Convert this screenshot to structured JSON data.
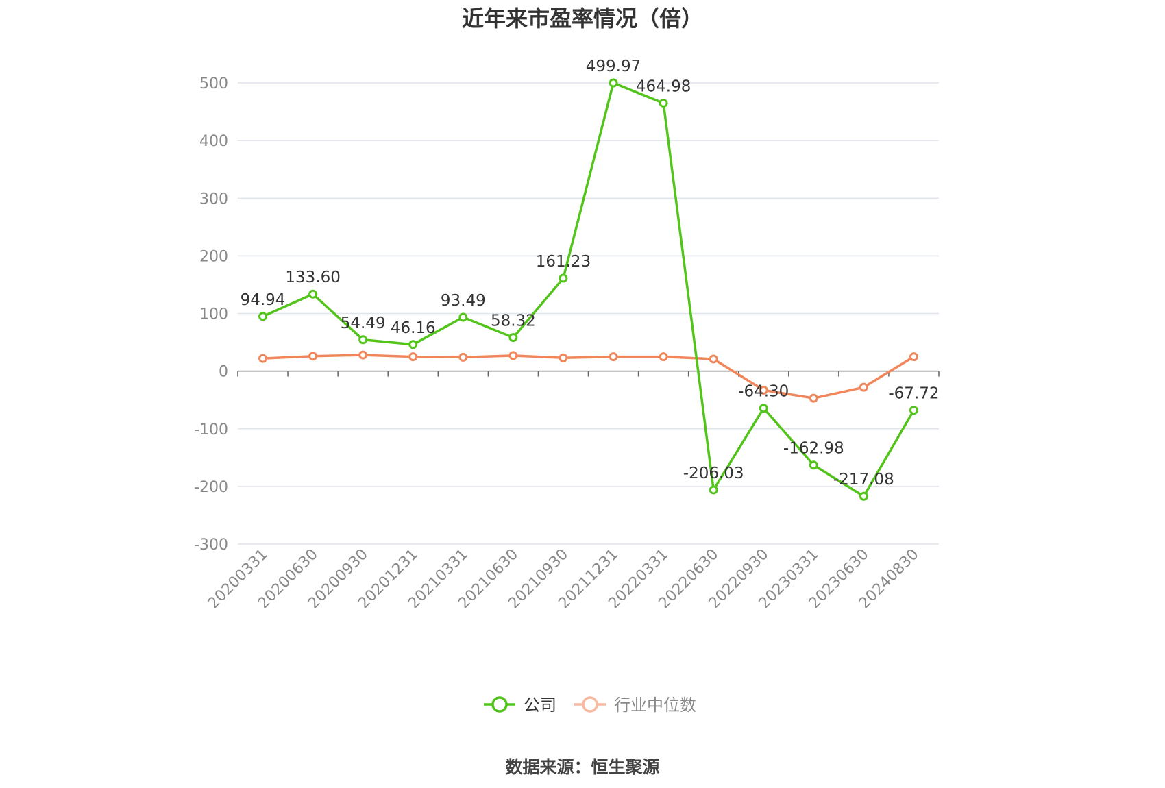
{
  "title": "近年来市盈率情况（倍）",
  "source": "数据来源：恒生聚源",
  "colors": {
    "company": "#52c41a",
    "industry": "#f0865a",
    "industry_legend": "#f7b9a0",
    "grid": "#e0e4ec",
    "axis": "#666666"
  },
  "chart_data": {
    "type": "line",
    "title": "近年来市盈率情况（倍）",
    "xlabel": "",
    "ylabel": "",
    "ylim": [
      -300,
      500
    ],
    "yticks": [
      500,
      400,
      300,
      200,
      100,
      0,
      -100,
      -200,
      -300
    ],
    "grid": true,
    "legend_position": "bottom",
    "categories": [
      "20200331",
      "20200630",
      "20200930",
      "20201231",
      "20210331",
      "20210630",
      "20210930",
      "20211231",
      "20220331",
      "20220630",
      "20220930",
      "20230331",
      "20230630",
      "20240830"
    ],
    "series": [
      {
        "name": "公司",
        "color": "#52c41a",
        "show_labels": true,
        "values": [
          94.94,
          133.6,
          54.49,
          46.16,
          93.49,
          58.32,
          161.23,
          499.97,
          464.98,
          -206.03,
          -64.3,
          -162.98,
          -217.08,
          -67.72
        ],
        "labels": [
          "94.94",
          "133.60",
          "54.49",
          "46.16",
          "93.49",
          "58.32",
          "161.23",
          "499.97",
          "464.98",
          "-206.03",
          "-64.30",
          "-162.98",
          "-217.08",
          "-67.72"
        ]
      },
      {
        "name": "行业中位数",
        "color": "#f0865a",
        "show_labels": false,
        "values": [
          22,
          26,
          28,
          25,
          24,
          27,
          23,
          25,
          25,
          21,
          -33,
          -47,
          -28,
          25
        ]
      }
    ]
  }
}
